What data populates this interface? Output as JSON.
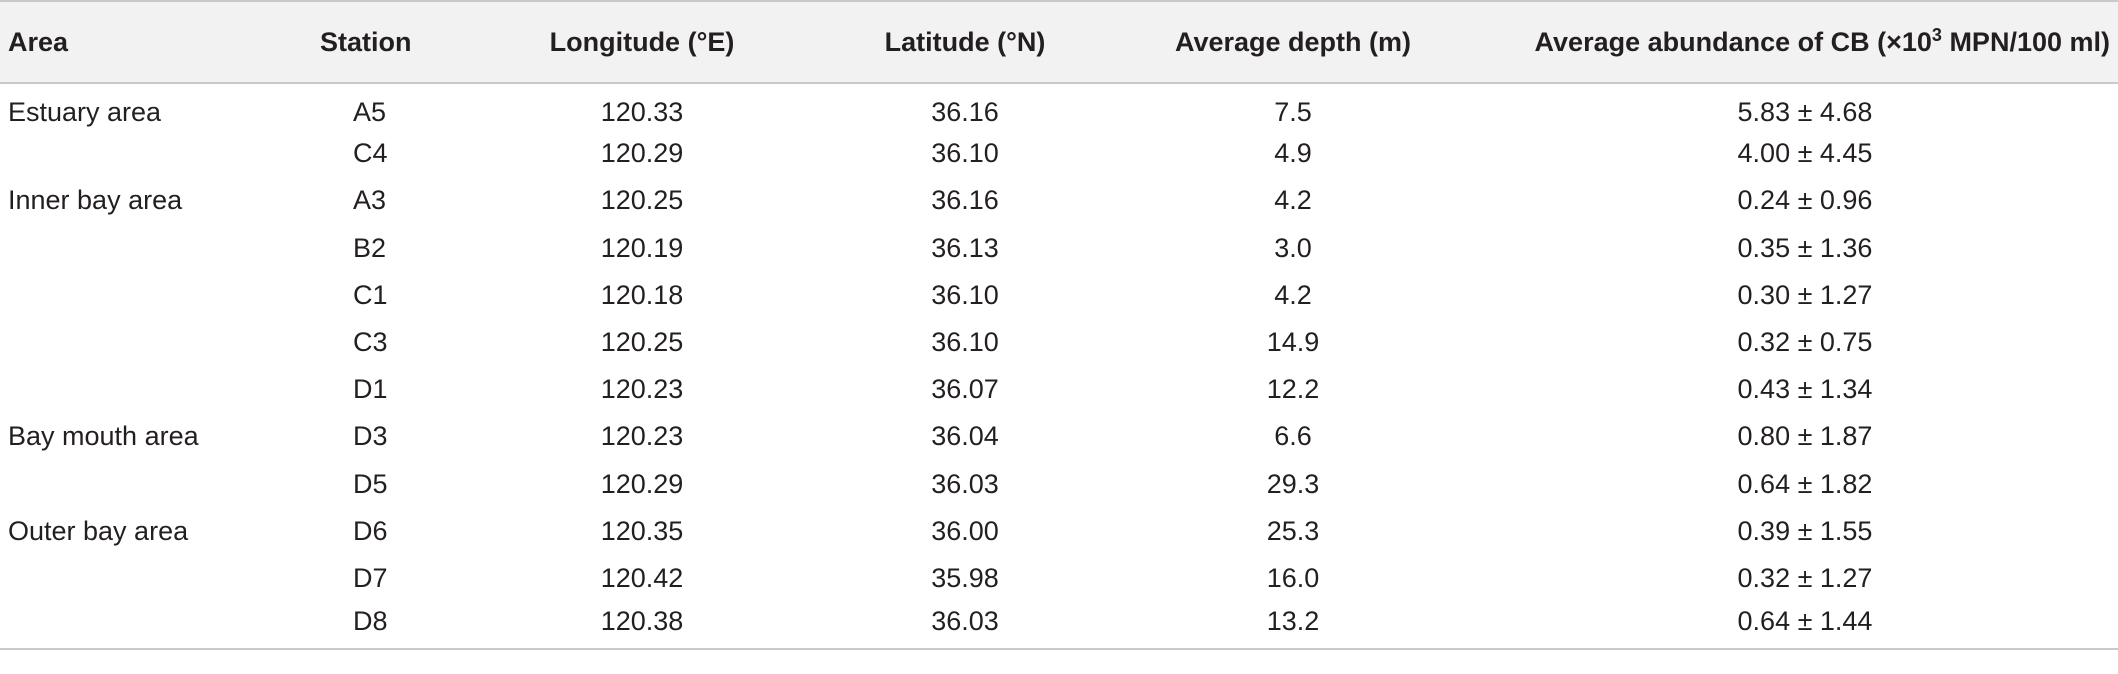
{
  "table": {
    "headers": {
      "area": "Area",
      "station": "Station",
      "longitude": "Longitude (°E)",
      "latitude": "Latitude (°N)",
      "depth": "Average depth (m)",
      "cb_prefix": "Average abundance of CB (×10",
      "cb_sup": "3",
      "cb_suffix": " MPN/100 ml)"
    },
    "rows": [
      {
        "area": "Estuary area",
        "station": "A5",
        "longitude": "120.33",
        "latitude": "36.16",
        "depth": "7.5",
        "cb": "5.83 ± 4.68"
      },
      {
        "area": "",
        "station": "C4",
        "longitude": "120.29",
        "latitude": "36.10",
        "depth": "4.9",
        "cb": "4.00 ± 4.45"
      },
      {
        "area": "Inner bay area",
        "station": "A3",
        "longitude": "120.25",
        "latitude": "36.16",
        "depth": "4.2",
        "cb": "0.24 ± 0.96"
      },
      {
        "area": "",
        "station": "B2",
        "longitude": "120.19",
        "latitude": "36.13",
        "depth": "3.0",
        "cb": "0.35 ± 1.36"
      },
      {
        "area": "",
        "station": "C1",
        "longitude": "120.18",
        "latitude": "36.10",
        "depth": "4.2",
        "cb": "0.30 ± 1.27"
      },
      {
        "area": "",
        "station": "C3",
        "longitude": "120.25",
        "latitude": "36.10",
        "depth": "14.9",
        "cb": "0.32 ± 0.75"
      },
      {
        "area": "",
        "station": "D1",
        "longitude": "120.23",
        "latitude": "36.07",
        "depth": "12.2",
        "cb": "0.43 ± 1.34"
      },
      {
        "area": "Bay mouth area",
        "station": "D3",
        "longitude": "120.23",
        "latitude": "36.04",
        "depth": "6.6",
        "cb": "0.80 ± 1.87"
      },
      {
        "area": "",
        "station": "D5",
        "longitude": "120.29",
        "latitude": "36.03",
        "depth": "29.3",
        "cb": "0.64 ± 1.82"
      },
      {
        "area": "Outer bay area",
        "station": "D6",
        "longitude": "120.35",
        "latitude": "36.00",
        "depth": "25.3",
        "cb": "0.39 ± 1.55"
      },
      {
        "area": "",
        "station": "D7",
        "longitude": "120.42",
        "latitude": "35.98",
        "depth": "16.0",
        "cb": "0.32 ± 1.27"
      },
      {
        "area": "",
        "station": "D8",
        "longitude": "120.38",
        "latitude": "36.03",
        "depth": "13.2",
        "cb": "0.64 ± 1.44"
      }
    ]
  }
}
